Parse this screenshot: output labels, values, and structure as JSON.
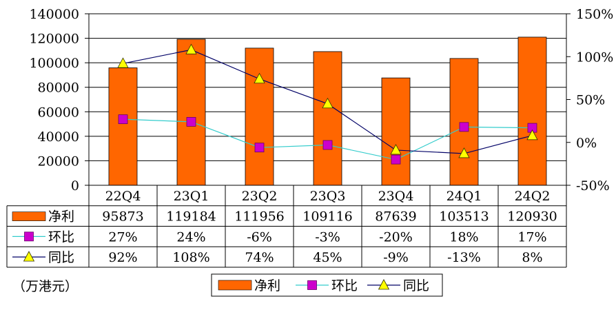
{
  "chart_data": {
    "type": "bar",
    "categories": [
      "22Q4",
      "23Q1",
      "23Q2",
      "23Q3",
      "23Q4",
      "24Q1",
      "24Q2"
    ],
    "series": [
      {
        "name": "净利",
        "kind": "bar",
        "axis": "left",
        "color": "#ff6600",
        "values": [
          95873,
          119184,
          111956,
          109116,
          87639,
          103513,
          120930
        ]
      },
      {
        "name": "环比",
        "kind": "line",
        "axis": "right",
        "color": "#33cccc",
        "marker": "square",
        "marker_color": "#cc00cc",
        "values": [
          27,
          24,
          -6,
          -3,
          -20,
          18,
          17
        ]
      },
      {
        "name": "同比",
        "kind": "line",
        "axis": "right",
        "color": "#000066",
        "marker": "triangle",
        "marker_color": "#ffff00",
        "values": [
          92,
          108,
          74,
          45,
          -9,
          -13,
          8
        ]
      }
    ],
    "table_rows": [
      {
        "label": "净利",
        "cells": [
          "95873",
          "119184",
          "111956",
          "109116",
          "87639",
          "103513",
          "120930"
        ]
      },
      {
        "label": "环比",
        "cells": [
          "27%",
          "24%",
          "-6%",
          "-3%",
          "-20%",
          "18%",
          "17%"
        ]
      },
      {
        "label": "同比",
        "cells": [
          "92%",
          "108%",
          "74%",
          "45%",
          "-9%",
          "-13%",
          "8%"
        ]
      }
    ],
    "y_left": {
      "min": 0,
      "max": 140000,
      "ticks": [
        "0",
        "20000",
        "40000",
        "60000",
        "80000",
        "100000",
        "120000",
        "140000"
      ]
    },
    "y_right": {
      "min": -50,
      "max": 150,
      "ticks": [
        "-50%",
        "0%",
        "50%",
        "100%",
        "150%"
      ]
    },
    "unit_label": "（万港元）",
    "legend": [
      "净利",
      "环比",
      "同比"
    ],
    "legend_position": "bottom",
    "grid": true
  }
}
